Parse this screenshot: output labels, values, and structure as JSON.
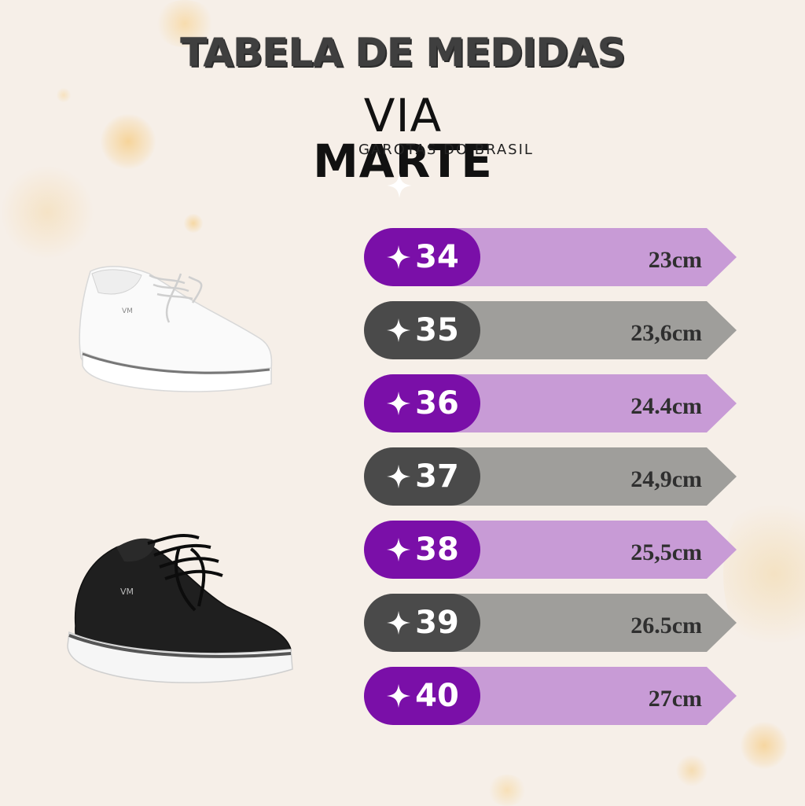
{
  "title": "TABELA DE MEDIDAS",
  "brand": {
    "name_light": "VIA",
    "name_bold": "MARTE",
    "tagline": "GAROTAS DO BRASIL"
  },
  "colors": {
    "purple_pill": "#7a0fa8",
    "purple_bar": "#c89bd6",
    "gray_pill": "#4a4a4a",
    "gray_bar": "#9f9e9b"
  },
  "sizes": [
    {
      "size": "34",
      "measure": "23cm",
      "style": "purple"
    },
    {
      "size": "35",
      "measure": "23,6cm",
      "style": "gray"
    },
    {
      "size": "36",
      "measure": "24.4cm",
      "style": "purple"
    },
    {
      "size": "37",
      "measure": "24,9cm",
      "style": "gray"
    },
    {
      "size": "38",
      "measure": "25,5cm",
      "style": "purple"
    },
    {
      "size": "39",
      "measure": "26.5cm",
      "style": "gray"
    },
    {
      "size": "40",
      "measure": "27cm",
      "style": "purple"
    }
  ],
  "images": [
    {
      "name": "white-sneaker",
      "color": "#ffffff"
    },
    {
      "name": "black-sneaker",
      "color": "#1d1d1d"
    }
  ]
}
